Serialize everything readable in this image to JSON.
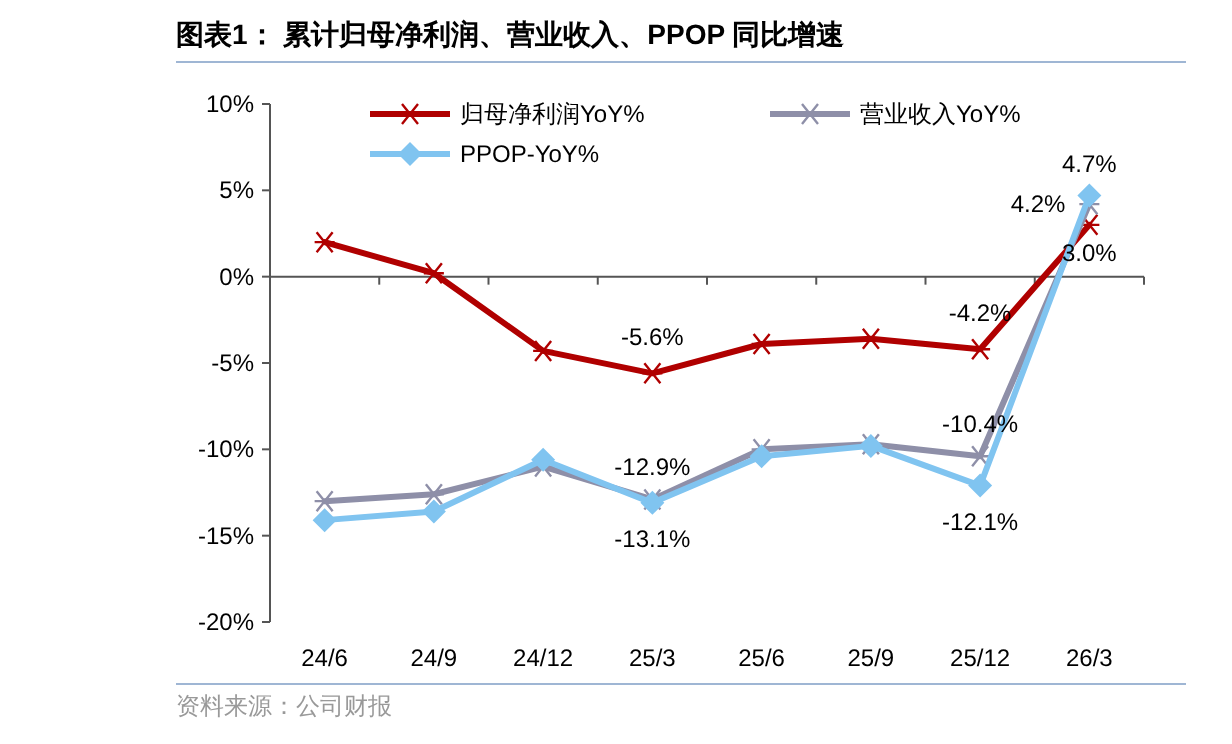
{
  "chart_data": {
    "type": "line",
    "title": "图表1：  累计归母净利润、营业收入、PPOP 同比增速",
    "categories": [
      "24/6",
      "24/9",
      "24/12",
      "25/3",
      "25/6",
      "25/9",
      "25/12",
      "26/3"
    ],
    "series": [
      {
        "name": "归母净利润YoY%",
        "color": "#b00000",
        "marker": "cross",
        "values": [
          2.0,
          0.2,
          -4.3,
          -5.6,
          -3.9,
          -3.6,
          -4.2,
          3.0
        ],
        "value_labels": [
          null,
          null,
          null,
          "-5.6%",
          null,
          null,
          "-4.2%",
          "3.0%"
        ]
      },
      {
        "name": "营业收入YoY%",
        "color": "#8e8fa8",
        "marker": "cross",
        "values": [
          -13.0,
          -12.6,
          -11.0,
          -12.9,
          -10.0,
          -9.7,
          -10.4,
          4.2
        ],
        "value_labels": [
          null,
          null,
          null,
          "-12.9%",
          null,
          null,
          "-10.4%",
          "4.2%"
        ]
      },
      {
        "name": "PPOP-YoY%",
        "color": "#80c4f0",
        "marker": "diamond",
        "values": [
          -14.1,
          -13.6,
          -10.6,
          -13.1,
          -10.4,
          -9.8,
          -12.1,
          4.7
        ],
        "value_labels": [
          null,
          null,
          null,
          "-13.1%",
          null,
          null,
          "-12.1%",
          "4.7%"
        ]
      }
    ],
    "ylim": [
      -20,
      10
    ],
    "yticks": [
      {
        "value": -20,
        "label": "-20%"
      },
      {
        "value": -15,
        "label": "-15%"
      },
      {
        "value": -10,
        "label": "-10%"
      },
      {
        "value": -5,
        "label": "-5%"
      },
      {
        "value": 0,
        "label": "0%"
      },
      {
        "value": 5,
        "label": "5%"
      },
      {
        "value": 10,
        "label": "10%"
      }
    ],
    "legend": "top",
    "line_style": "solid",
    "annotations": [
      "资料来源：公司财报"
    ]
  }
}
